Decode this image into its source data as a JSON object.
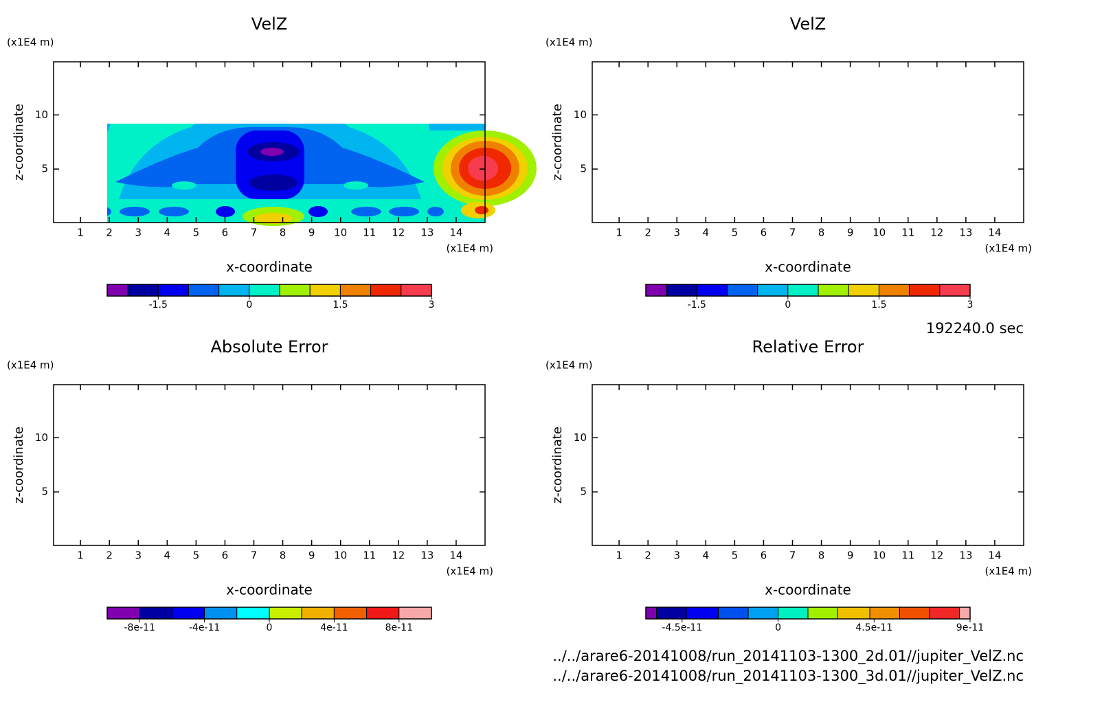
{
  "chart_data": [
    {
      "type": "contour",
      "title": "VelZ",
      "x_label": "x-coordinate",
      "y_label": "z-coordinate",
      "x_unit": "(x1E4 m)",
      "y_unit": "(x1E4 m)",
      "xlim": [
        0.07,
        15
      ],
      "ylim": [
        0.06,
        14.9
      ],
      "xticks": [
        1,
        2,
        3,
        4,
        5,
        6,
        7,
        8,
        9,
        10,
        11,
        12,
        13,
        14
      ],
      "yticks": [
        5,
        10
      ],
      "colorbar": {
        "levels": [
          -2.34,
          -2,
          -1.5,
          -1,
          -0.5,
          0,
          0.5,
          1,
          1.5,
          2,
          2.5,
          3
        ],
        "ticks": [
          -1.5,
          0,
          1.5,
          3
        ],
        "colors": [
          "#8000b0",
          "#0000a0",
          "#0000f0",
          "#0064f0",
          "#00b4f0",
          "#00f0c8",
          "#a0f000",
          "#f0d000",
          "#f08000",
          "#f02800",
          "#f83c50"
        ]
      }
    },
    {
      "type": "contour",
      "title": "VelZ",
      "x_label": "x-coordinate",
      "y_label": "z-coordinate",
      "x_unit": "(x1E4 m)",
      "y_unit": "(x1E4 m)",
      "xlim": [
        0.07,
        15
      ],
      "ylim": [
        0.06,
        14.9
      ],
      "xticks": [
        1,
        2,
        3,
        4,
        5,
        6,
        7,
        8,
        9,
        10,
        11,
        12,
        13,
        14
      ],
      "yticks": [
        5,
        10
      ],
      "colorbar": {
        "levels": [
          -2.34,
          -2,
          -1.5,
          -1,
          -0.5,
          0,
          0.5,
          1,
          1.5,
          2,
          2.5,
          3
        ],
        "ticks": [
          -1.5,
          0,
          1.5,
          3
        ],
        "colors": [
          "#8000b0",
          "#0000a0",
          "#0000f0",
          "#0064f0",
          "#00b4f0",
          "#00f0c8",
          "#a0f000",
          "#f0d000",
          "#f08000",
          "#f02800",
          "#f83c50"
        ]
      }
    },
    {
      "type": "contour",
      "title": "Absolute Error",
      "x_label": "x-coordinate",
      "y_label": "z-coordinate",
      "x_unit": "(x1E4 m)",
      "y_unit": "(x1E4 m)",
      "xlim": [
        0.07,
        15
      ],
      "ylim": [
        0.06,
        14.9
      ],
      "xticks": [
        1,
        2,
        3,
        4,
        5,
        6,
        7,
        8,
        9,
        10,
        11,
        12,
        13,
        14
      ],
      "yticks": [
        5,
        10
      ],
      "colorbar": {
        "levels": [
          -1e-10,
          -8e-11,
          -6e-11,
          -4e-11,
          -2e-11,
          0,
          2e-11,
          4e-11,
          6e-11,
          8e-11,
          1e-10
        ],
        "ticks": [
          -8e-11,
          -4e-11,
          0,
          4e-11,
          8e-11
        ],
        "colors": [
          "#8000b0",
          "#0000a0",
          "#0000f0",
          "#0090f0",
          "#00ffff",
          "#c8f000",
          "#f0b000",
          "#f06000",
          "#f01818",
          "#f8a8a8"
        ]
      }
    },
    {
      "type": "contour",
      "title": "Relative Error",
      "x_label": "x-coordinate",
      "y_label": "z-coordinate",
      "x_unit": "(x1E4 m)",
      "y_unit": "(x1E4 m)",
      "xlim": [
        0.07,
        15
      ],
      "ylim": [
        0.06,
        14.9
      ],
      "xticks": [
        1,
        2,
        3,
        4,
        5,
        6,
        7,
        8,
        9,
        10,
        11,
        12,
        13,
        14
      ],
      "yticks": [
        5,
        10
      ],
      "colorbar": {
        "levels": [
          -6.2e-11,
          -5.7e-11,
          -4.3e-11,
          -2.8e-11,
          -1.4e-11,
          0,
          1.4e-11,
          2.8e-11,
          4.3e-11,
          5.7e-11,
          7.1e-11,
          8.5e-11,
          9e-11
        ],
        "ticks": [
          -4.5e-11,
          0,
          4.5e-11,
          9e-11
        ],
        "colors": [
          "#8000b0",
          "#0000a0",
          "#0000f0",
          "#0050f0",
          "#00a0f0",
          "#00f0c0",
          "#a0f000",
          "#f0c000",
          "#f09000",
          "#f05000",
          "#f02828",
          "#f8a8a8"
        ]
      }
    }
  ],
  "time_label": "192240.0 sec",
  "files": [
    "../../arare6-20141008/run_20141103-1300_2d.01//jupiter_VelZ.nc",
    "../../arare6-20141008/run_20141103-1300_3d.01//jupiter_VelZ.nc"
  ]
}
